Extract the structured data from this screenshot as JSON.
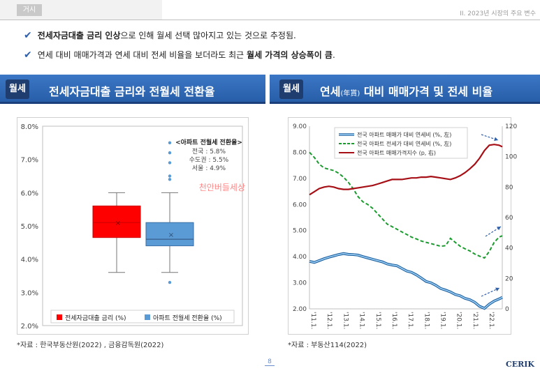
{
  "header": {
    "tab_label": "거시",
    "section_label": "II. 2023년 시장의 주요 변수"
  },
  "bullets": [
    {
      "bold": "전세자금대출 금리 인상",
      "normal_after": "으로 인해 월세 선택 많아지고 있는 것으로 추정됨."
    },
    {
      "normal_before": "연세 대비 매매가격과 연세 대비 전세 비율을 보더라도 최근 ",
      "bold": "월세 가격의 상승폭이 큼",
      "normal_after": "."
    }
  ],
  "left_banner": {
    "badge": "월세",
    "title": "전세자금대출 금리와 전월세 전환율"
  },
  "right_banner": {
    "badge": "월세",
    "title_main": "연세",
    "title_small": "(年貰)",
    "title_rest": " 대비 매매가격 및 전세 비율"
  },
  "left_source": "*자료 : 한국부동산원(2022) , 금융감독원(2022)",
  "right_source": "*자료 : 부동산114(2022)",
  "watermark": "천안버들세상",
  "footer": {
    "page": "8",
    "logo": "CERIK"
  },
  "colors": {
    "red": "#ff0000",
    "blue": "#5b9bd5",
    "dark_red": "#a50f15",
    "green": "#1a9b2e",
    "line_blue": "#3a8fd8",
    "banner": "#3b77c6"
  },
  "chart_data": [
    {
      "type": "box",
      "ylim": [
        2.0,
        8.0
      ],
      "yticks": [
        "2.0%",
        "3.0%",
        "4.0%",
        "5.0%",
        "6.0%",
        "7.0%",
        "8.0%"
      ],
      "series": [
        {
          "name": "전세자금대출 금리 (%)",
          "min": 3.6,
          "q1": 4.65,
          "median": 5.1,
          "q3": 5.6,
          "max": 6.0,
          "mean": 5.1,
          "outliers": []
        },
        {
          "name": "아파트 전월세 전환율 (%)",
          "min": 3.6,
          "q1": 4.4,
          "median": 4.6,
          "q3": 5.1,
          "max": 6.0,
          "mean": 4.75,
          "outliers": [
            3.3,
            6.4,
            6.5,
            6.9,
            7.2,
            7.5
          ]
        }
      ],
      "annotation": {
        "title": "<아파트 전월세 전환율>",
        "lines": [
          "전국 : 5.8%",
          "수도권 : 5.5%",
          "서울 : 4.9%"
        ]
      }
    },
    {
      "type": "line",
      "x_ticks": [
        "'11.1.",
        "'12.1.",
        "'13.1.",
        "'14.1.",
        "'15.1.",
        "'16.1.",
        "'17.1.",
        "'18.1.",
        "'19.1.",
        "'20.1.",
        "'21.1.",
        "'22.1."
      ],
      "x_range": [
        2011.0,
        2022.9
      ],
      "y_left": {
        "lim": [
          2.0,
          9.0
        ],
        "ticks": [
          "2.00",
          "3.00",
          "4.00",
          "5.00",
          "6.00",
          "7.00",
          "8.00",
          "9.00"
        ]
      },
      "y_right": {
        "lim": [
          0,
          120
        ],
        "ticks": [
          "0",
          "20",
          "40",
          "60",
          "80",
          "100",
          "120"
        ]
      },
      "series": [
        {
          "name": "전국 아파트 매매가 대비 연세비 (%, 左)",
          "axis": "left",
          "style": "solid",
          "x": [
            2011.0,
            2011.3,
            2011.6,
            2011.9,
            2012.2,
            2012.5,
            2012.8,
            2013.1,
            2013.4,
            2013.7,
            2014.0,
            2014.3,
            2014.6,
            2014.9,
            2015.2,
            2015.5,
            2015.8,
            2016.1,
            2016.4,
            2016.7,
            2017.0,
            2017.3,
            2017.6,
            2017.9,
            2018.2,
            2018.5,
            2018.8,
            2019.1,
            2019.4,
            2019.7,
            2020.0,
            2020.3,
            2020.6,
            2020.9,
            2021.2,
            2021.5,
            2021.8,
            2022.1,
            2022.4,
            2022.7,
            2022.9
          ],
          "values": [
            3.82,
            3.78,
            3.85,
            3.92,
            3.98,
            4.03,
            4.08,
            4.12,
            4.09,
            4.08,
            4.06,
            4.0,
            3.95,
            3.9,
            3.85,
            3.8,
            3.72,
            3.68,
            3.65,
            3.55,
            3.45,
            3.4,
            3.3,
            3.18,
            3.05,
            3.0,
            2.9,
            2.78,
            2.72,
            2.65,
            2.55,
            2.5,
            2.4,
            2.35,
            2.25,
            2.1,
            2.02,
            2.18,
            2.3,
            2.38,
            2.44
          ]
        },
        {
          "name": "전국 아파트 전세가 대비 연세비 (%, 左)",
          "axis": "left",
          "style": "dashed",
          "x": [
            2011.0,
            2011.3,
            2011.6,
            2011.9,
            2012.2,
            2012.5,
            2012.8,
            2013.1,
            2013.4,
            2013.7,
            2014.0,
            2014.3,
            2014.6,
            2014.9,
            2015.2,
            2015.5,
            2015.8,
            2016.1,
            2016.4,
            2016.7,
            2017.0,
            2017.3,
            2017.6,
            2017.9,
            2018.2,
            2018.5,
            2018.8,
            2019.1,
            2019.4,
            2019.7,
            2020.0,
            2020.3,
            2020.6,
            2020.9,
            2021.2,
            2021.5,
            2021.8,
            2022.1,
            2022.4,
            2022.7,
            2022.9
          ],
          "values": [
            8.0,
            7.8,
            7.55,
            7.4,
            7.35,
            7.3,
            7.2,
            7.05,
            6.85,
            6.6,
            6.3,
            6.1,
            6.0,
            5.85,
            5.65,
            5.45,
            5.25,
            5.15,
            5.05,
            4.95,
            4.85,
            4.75,
            4.68,
            4.6,
            4.55,
            4.5,
            4.45,
            4.4,
            4.42,
            4.7,
            4.55,
            4.4,
            4.3,
            4.22,
            4.1,
            4.02,
            3.95,
            4.2,
            4.55,
            4.75,
            4.8
          ]
        },
        {
          "name": "전국 아파트 매매가격지수 (p, 右)",
          "axis": "right",
          "style": "solid",
          "x": [
            2011.0,
            2011.3,
            2011.6,
            2011.9,
            2012.2,
            2012.5,
            2012.8,
            2013.1,
            2013.4,
            2013.7,
            2014.0,
            2014.3,
            2014.6,
            2014.9,
            2015.2,
            2015.5,
            2015.8,
            2016.1,
            2016.4,
            2016.7,
            2017.0,
            2017.3,
            2017.6,
            2017.9,
            2018.2,
            2018.5,
            2018.8,
            2019.1,
            2019.4,
            2019.7,
            2020.0,
            2020.3,
            2020.6,
            2020.9,
            2021.2,
            2021.5,
            2021.8,
            2022.1,
            2022.4,
            2022.7,
            2022.9
          ],
          "values": [
            75,
            77,
            79,
            80,
            80.5,
            80,
            79,
            78.5,
            78.5,
            79,
            79.5,
            80,
            80.5,
            81,
            82,
            83,
            84,
            85,
            85,
            85,
            85.5,
            86,
            86,
            86.5,
            86.5,
            87,
            86.5,
            86,
            85.5,
            85,
            86,
            87.5,
            89.5,
            92,
            95,
            99,
            104,
            107.5,
            108,
            107.5,
            106.5
          ]
        }
      ]
    }
  ]
}
